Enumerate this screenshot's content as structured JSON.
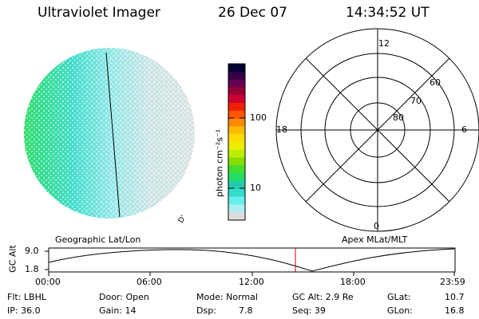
{
  "header": {
    "title": "Ultraviolet Imager",
    "date": "26 Dec 07",
    "time": "14:34:52 UT"
  },
  "colorbar": {
    "unit_label": "photon cm⁻²s⁻¹",
    "ticks": [
      "100",
      "10"
    ],
    "colors": [
      "#000033",
      "#330044",
      "#660055",
      "#990033",
      "#cc0033",
      "#ee2200",
      "#ff5500",
      "#ff8800",
      "#ffbb00",
      "#ffdd00",
      "#eeee00",
      "#bbee00",
      "#88dd00",
      "#44dd33",
      "#22dd66",
      "#22ccaa",
      "#33ddcc",
      "#66eeee",
      "#aaeeee",
      "#dddddd"
    ]
  },
  "globe": {
    "corner_mark": "D'"
  },
  "polar": {
    "clock_labels": {
      "top": "12",
      "left": "18",
      "right": "6",
      "bottom": "0"
    },
    "lat_labels": [
      "60",
      "70",
      "80"
    ]
  },
  "timeline": {
    "left_label": "Geographic Lat/Lon",
    "right_label": "Apex MLat/MLT",
    "axis_title": "GC Alt",
    "y_ticks": [
      "9.0",
      "1.8"
    ],
    "x_ticks": [
      "00:00",
      "06:00",
      "12:00",
      "18:00",
      "23:59"
    ],
    "marker_color": "#cc0000"
  },
  "info": {
    "row1": {
      "flt": "Flt: LBHL",
      "door": "Door: Open",
      "mode": "Mode: Normal",
      "gcalt": "GC Alt: 2.9 Re",
      "glat_label": "GLat:",
      "glat_value": "10.7"
    },
    "row2": {
      "ip": "IP: 36.0",
      "gain": "Gain: 14",
      "dsp_label": "Dsp:",
      "dsp_value": "7.8",
      "seq": "Seq: 39",
      "glon_label": "GLon:",
      "glon_value": "16.8"
    }
  }
}
